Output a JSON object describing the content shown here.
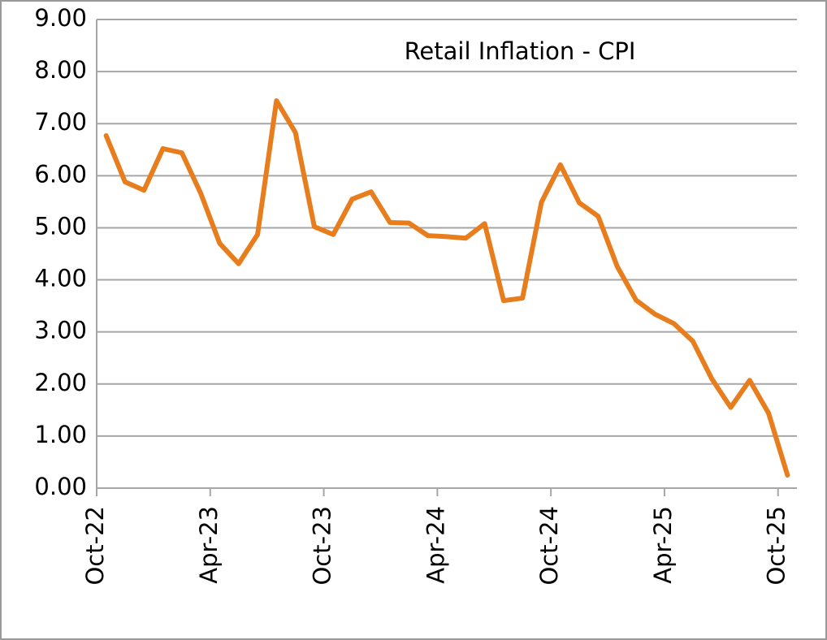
{
  "chart_data": {
    "type": "line",
    "title": "Retail Inflation - CPI",
    "categories": [
      "Oct-22",
      null,
      null,
      null,
      null,
      null,
      "Apr-23",
      null,
      null,
      null,
      null,
      null,
      "Oct-23",
      null,
      null,
      null,
      null,
      null,
      "Apr-24",
      null,
      null,
      null,
      null,
      null,
      "Oct-24",
      null,
      null,
      null,
      null,
      null,
      "Apr-25",
      null,
      null,
      null,
      null,
      null,
      "Oct-25"
    ],
    "series": [
      {
        "color": "#e87d1e",
        "values": [
          6.77,
          5.88,
          5.72,
          6.52,
          6.44,
          5.66,
          4.7,
          4.31,
          4.87,
          7.44,
          6.83,
          5.02,
          4.87,
          5.55,
          5.69,
          5.1,
          5.09,
          4.85,
          4.83,
          4.8,
          5.08,
          3.6,
          3.65,
          5.49,
          6.21,
          5.48,
          5.22,
          4.26,
          3.61,
          3.34,
          3.16,
          2.82,
          2.1,
          1.55,
          2.07,
          1.44,
          0.25
        ]
      }
    ],
    "ylim": [
      0,
      9
    ],
    "yticks": [
      {
        "value": 0,
        "label": "0.00"
      },
      {
        "value": 1,
        "label": "1.00"
      },
      {
        "value": 2,
        "label": "2.00"
      },
      {
        "value": 3,
        "label": "3.00"
      },
      {
        "value": 4,
        "label": "4.00"
      },
      {
        "value": 5,
        "label": "5.00"
      },
      {
        "value": 6,
        "label": "6.00"
      },
      {
        "value": 7,
        "label": "7.00"
      },
      {
        "value": 8,
        "label": "8.00"
      },
      {
        "value": 9,
        "label": "9.00"
      }
    ],
    "grid": true
  }
}
